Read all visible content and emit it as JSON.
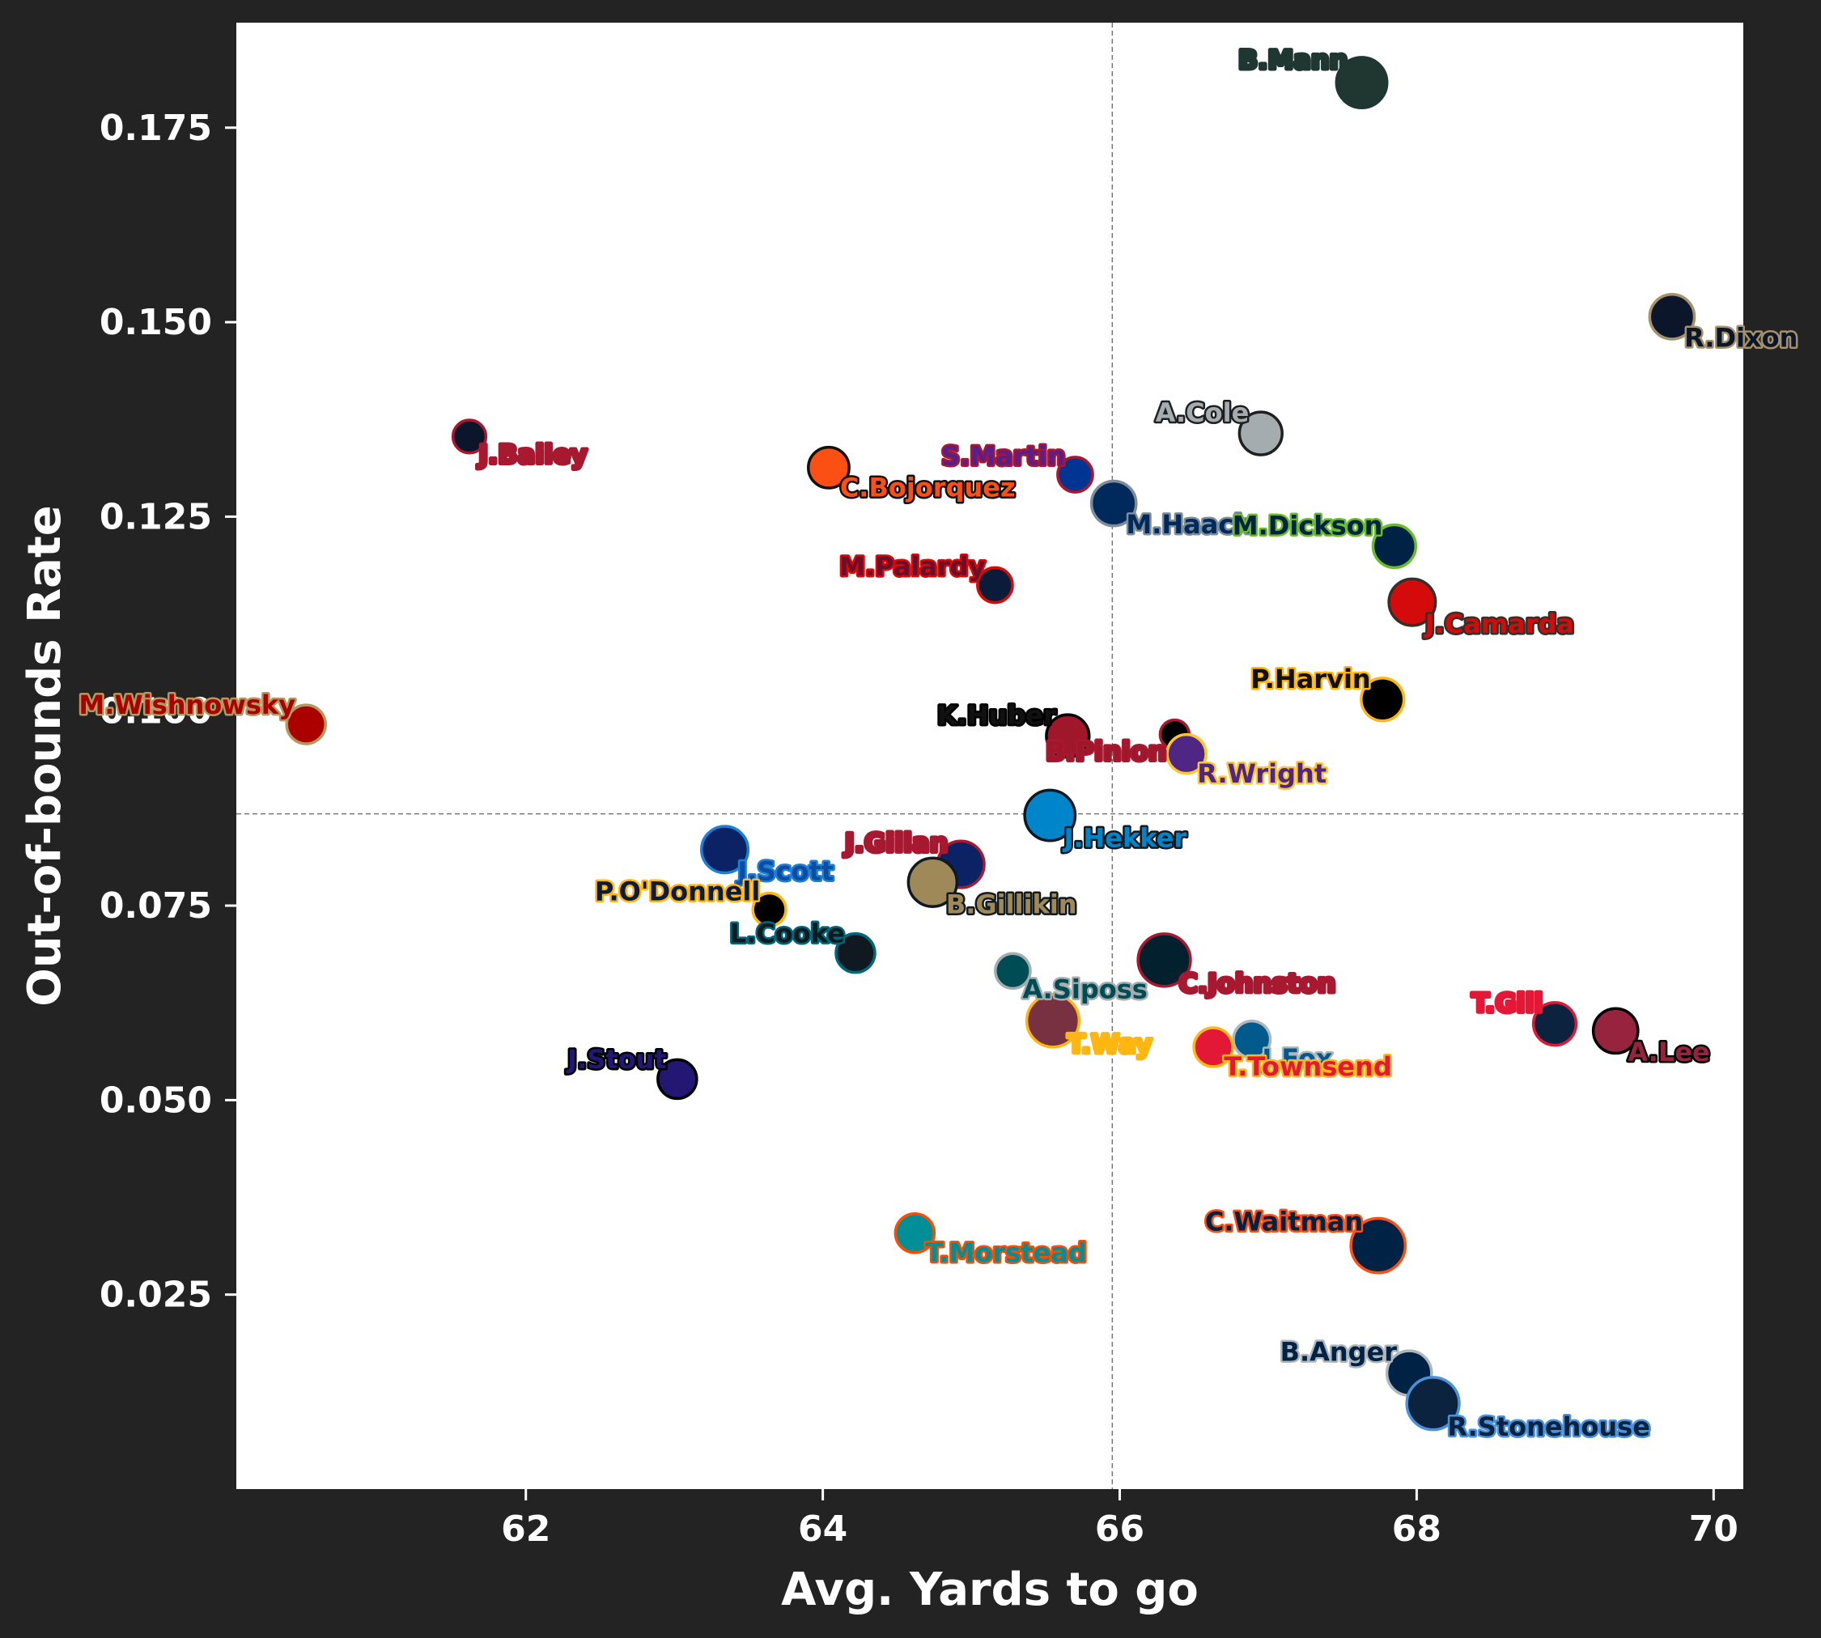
{
  "chart_data": {
    "type": "scatter",
    "title": "",
    "xlabel": "Avg. Yards to go",
    "ylabel": "Out-of-bounds Rate",
    "xlim": [
      60.05,
      70.2
    ],
    "ylim": [
      0.0,
      0.1885
    ],
    "x_ticks": [
      62,
      64,
      66,
      68,
      70
    ],
    "x_tick_labels": [
      "62",
      "64",
      "66",
      "68",
      "70"
    ],
    "y_ticks": [
      0.025,
      0.05,
      0.075,
      0.1,
      0.125,
      0.15,
      0.175
    ],
    "y_tick_labels": [
      "0.025",
      "0.050",
      "0.075",
      "0.100",
      "0.125",
      "0.150",
      "0.175"
    ],
    "mean_x": 65.95,
    "mean_y": 0.0868,
    "points": [
      {
        "name": "B.Mann",
        "x": 67.63,
        "y": 0.1808,
        "size": 1.3,
        "fill": "#203731",
        "edge": "#203731",
        "text": "#203731",
        "anchor": "above-left"
      },
      {
        "name": "R.Dixon",
        "x": 69.72,
        "y": 0.1507,
        "size": 1.15,
        "fill": "#0B162A",
        "edge": "#a5926c",
        "text": "#0B162A",
        "anchor": "below-right"
      },
      {
        "name": "A.Cole",
        "x": 66.95,
        "y": 0.1357,
        "size": 1.1,
        "fill": "#a5acaf",
        "edge": "#1f1f1f",
        "text": "#a5acaf",
        "anchor": "above-left"
      },
      {
        "name": "J.Bailey",
        "x": 61.62,
        "y": 0.1353,
        "size": 0.85,
        "fill": "#0B162A",
        "edge": "#A71930",
        "text": "#A71930",
        "anchor": "below-right"
      },
      {
        "name": "C.Bojorquez",
        "x": 64.04,
        "y": 0.1313,
        "size": 1.05,
        "fill": "#FB4F14",
        "edge": "#111111",
        "text": "#FB4F14",
        "anchor": "below-right"
      },
      {
        "name": "S.Martin",
        "x": 65.7,
        "y": 0.1304,
        "size": 0.9,
        "fill": "#003594",
        "edge": "#A71930",
        "text": "#5a1e8c",
        "anchor": "above-left"
      },
      {
        "name": "M.Haack",
        "x": 65.96,
        "y": 0.1267,
        "size": 1.15,
        "fill": "#002a5c",
        "edge": "#7f8c9a",
        "text": "#002a5c",
        "anchor": "below-right"
      },
      {
        "name": "M.Dickson",
        "x": 67.85,
        "y": 0.1212,
        "size": 1.1,
        "fill": "#002244",
        "edge": "#69BE28",
        "text": "#002244",
        "anchor": "above-left"
      },
      {
        "name": "M.Palardy",
        "x": 65.16,
        "y": 0.1162,
        "size": 0.9,
        "fill": "#0b1c3a",
        "edge": "#D50A0A",
        "text": "#6b0e2a",
        "anchor": "above-left"
      },
      {
        "name": "J.Camarda",
        "x": 67.97,
        "y": 0.114,
        "size": 1.2,
        "fill": "#D50A0A",
        "edge": "#34302B",
        "text": "#D50A0A",
        "anchor": "below-right"
      },
      {
        "name": "P.Harvin",
        "x": 67.77,
        "y": 0.1015,
        "size": 1.1,
        "fill": "#000000",
        "edge": "#FFB612",
        "text": "#111111",
        "anchor": "above-left"
      },
      {
        "name": "M.Wishnowsky",
        "x": 60.52,
        "y": 0.0983,
        "size": 1.0,
        "fill": "#AA0000",
        "edge": "#B3995D",
        "text": "#AA0000",
        "anchor": "above-left"
      },
      {
        "name": "K.Huber",
        "x": 65.65,
        "y": 0.0968,
        "size": 1.1,
        "fill": "#a0162b",
        "edge": "#000000",
        "text": "#111111",
        "anchor": "above-left"
      },
      {
        "name": "B.Pinion",
        "x": 66.37,
        "y": 0.097,
        "size": 0.75,
        "fill": "#000000",
        "edge": "#A71930",
        "text": "#a0162b",
        "anchor": "below-left"
      },
      {
        "name": "R.Wright",
        "x": 66.45,
        "y": 0.0945,
        "size": 1.0,
        "fill": "#4F2683",
        "edge": "#FFC62F",
        "text": "#4F2683",
        "anchor": "below-right"
      },
      {
        "name": "J.Hekker",
        "x": 65.53,
        "y": 0.0866,
        "size": 1.3,
        "fill": "#0085CA",
        "edge": "#101820",
        "text": "#0085CA",
        "anchor": "below-right"
      },
      {
        "name": "J.Scott",
        "x": 63.34,
        "y": 0.0822,
        "size": 1.2,
        "fill": "#0B2265",
        "edge": "#1f7fd4",
        "text": "#0b4da2",
        "anchor": "below-right"
      },
      {
        "name": "J.Gillan",
        "x": 64.93,
        "y": 0.0803,
        "size": 1.2,
        "fill": "#0b2265",
        "edge": "#a71930",
        "text": "#a71930",
        "anchor": "above-left"
      },
      {
        "name": "B.Gillikin",
        "x": 64.74,
        "y": 0.078,
        "size": 1.25,
        "fill": "#9f8958",
        "edge": "#101820",
        "text": "#9f8958",
        "anchor": "below-right"
      },
      {
        "name": "P.O'Donnell",
        "x": 63.64,
        "y": 0.0745,
        "size": 0.85,
        "fill": "#000000",
        "edge": "#FFB612",
        "text": "#0b1c3a",
        "anchor": "above-left"
      },
      {
        "name": "L.Cooke",
        "x": 64.22,
        "y": 0.0689,
        "size": 1.0,
        "fill": "#101820",
        "edge": "#006778",
        "text": "#101820",
        "anchor": "above-left"
      },
      {
        "name": "C.Johnston",
        "x": 66.3,
        "y": 0.068,
        "size": 1.35,
        "fill": "#03202F",
        "edge": "#A71930",
        "text": "#A71930",
        "anchor": "below-right"
      },
      {
        "name": "A.Siposs",
        "x": 65.28,
        "y": 0.0666,
        "size": 0.9,
        "fill": "#004C54",
        "edge": "#A5ACAF",
        "text": "#004C54",
        "anchor": "below-right"
      },
      {
        "name": "T.Way",
        "x": 65.55,
        "y": 0.0602,
        "size": 1.35,
        "fill": "#773141",
        "edge": "#FFB612",
        "text": "#FFB612",
        "anchor": "below-right"
      },
      {
        "name": "T.Gill",
        "x": 68.93,
        "y": 0.0598,
        "size": 1.1,
        "fill": "#0C2340",
        "edge": "#E31837",
        "text": "#E31837",
        "anchor": "above-left"
      },
      {
        "name": "A.Lee",
        "x": 69.34,
        "y": 0.0589,
        "size": 1.15,
        "fill": "#97233F",
        "edge": "#000000",
        "text": "#97233F",
        "anchor": "below-right"
      },
      {
        "name": "J.Fox",
        "x": 66.89,
        "y": 0.0578,
        "size": 0.95,
        "fill": "#005A8B",
        "edge": "#B0B7BC",
        "text": "#005A8B",
        "anchor": "below-right"
      },
      {
        "name": "T.Townsend",
        "x": 66.63,
        "y": 0.0568,
        "size": 1.0,
        "fill": "#E31837",
        "edge": "#FFB81C",
        "text": "#E31837",
        "anchor": "below-right"
      },
      {
        "name": "J.Stout",
        "x": 63.02,
        "y": 0.0527,
        "size": 1.0,
        "fill": "#241773",
        "edge": "#000000",
        "text": "#241773",
        "anchor": "above-left"
      },
      {
        "name": "T.Morstead",
        "x": 64.62,
        "y": 0.0329,
        "size": 1.0,
        "fill": "#008E97",
        "edge": "#FC4C02",
        "text": "#008E97",
        "anchor": "below-right"
      },
      {
        "name": "C.Waitman",
        "x": 67.74,
        "y": 0.0313,
        "size": 1.4,
        "fill": "#002244",
        "edge": "#FB4F14",
        "text": "#002244",
        "anchor": "above-left"
      },
      {
        "name": "B.Anger",
        "x": 67.95,
        "y": 0.0149,
        "size": 1.15,
        "fill": "#002244",
        "edge": "#B0B7BC",
        "text": "#002244",
        "anchor": "above-left"
      },
      {
        "name": "R.Stonehouse",
        "x": 68.11,
        "y": 0.011,
        "size": 1.35,
        "fill": "#0C2340",
        "edge": "#4B92DB",
        "text": "#0C2340",
        "anchor": "below-right"
      }
    ]
  }
}
